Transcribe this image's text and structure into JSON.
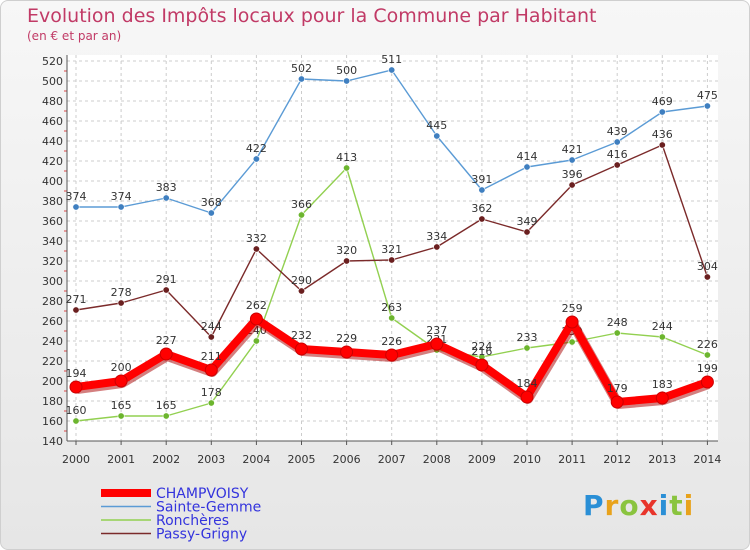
{
  "chart_data": {
    "type": "line",
    "title": "Evolution des Impôts locaux pour la Commune par Habitant",
    "subtitle": "(en € et par an)",
    "xlabel": "",
    "ylabel": "",
    "ylim": [
      140,
      520
    ],
    "ytick_step": 20,
    "categories": [
      "2000",
      "2001",
      "2002",
      "2003",
      "2004",
      "2005",
      "2006",
      "2007",
      "2008",
      "2009",
      "2010",
      "2011",
      "2012",
      "2013",
      "2014"
    ],
    "series": [
      {
        "name": "Sainte-Gemme",
        "color": "#5b9bd5",
        "dot": "#3f7fc0",
        "values": [
          374,
          374,
          383,
          368,
          422,
          502,
          500,
          511,
          445,
          391,
          414,
          421,
          439,
          469,
          475
        ]
      },
      {
        "name": "Ronchères",
        "color": "#92d050",
        "dot": "#6cb52e",
        "values": [
          160,
          165,
          165,
          178,
          240,
          366,
          413,
          263,
          231,
          224,
          233,
          239,
          248,
          244,
          226
        ]
      },
      {
        "name": "Passy-Grigny",
        "color": "#7b2a2a",
        "dot": "#6a1f1f",
        "values": [
          271,
          278,
          291,
          244,
          332,
          290,
          320,
          321,
          334,
          362,
          349,
          396,
          416,
          436,
          304
        ]
      },
      {
        "name": "CHAMPVOISY",
        "color": "#ff0000",
        "dot": "#ff0000",
        "values": [
          194,
          200,
          227,
          211,
          262,
          232,
          229,
          226,
          237,
          216,
          184,
          259,
          179,
          183,
          199
        ]
      }
    ],
    "legend": [
      {
        "name": "CHAMPVOISY",
        "color": "#ff0000",
        "text_color": "#3333dd"
      },
      {
        "name": "Sainte-Gemme",
        "color": "#5b9bd5",
        "text_color": "#3333dd"
      },
      {
        "name": "Ronchères",
        "color": "#92d050",
        "text_color": "#3333dd"
      },
      {
        "name": "Passy-Grigny",
        "color": "#7b2a2a",
        "text_color": "#3333dd"
      }
    ]
  },
  "logo": {
    "letters": [
      "P",
      "r",
      "o",
      "x",
      "i",
      "t",
      "i"
    ],
    "colors": [
      "#2a8fd6",
      "#e8a21b",
      "#8ac43f",
      "#e8352b",
      "#2a8fd6",
      "#8ac43f",
      "#e8a21b"
    ]
  }
}
